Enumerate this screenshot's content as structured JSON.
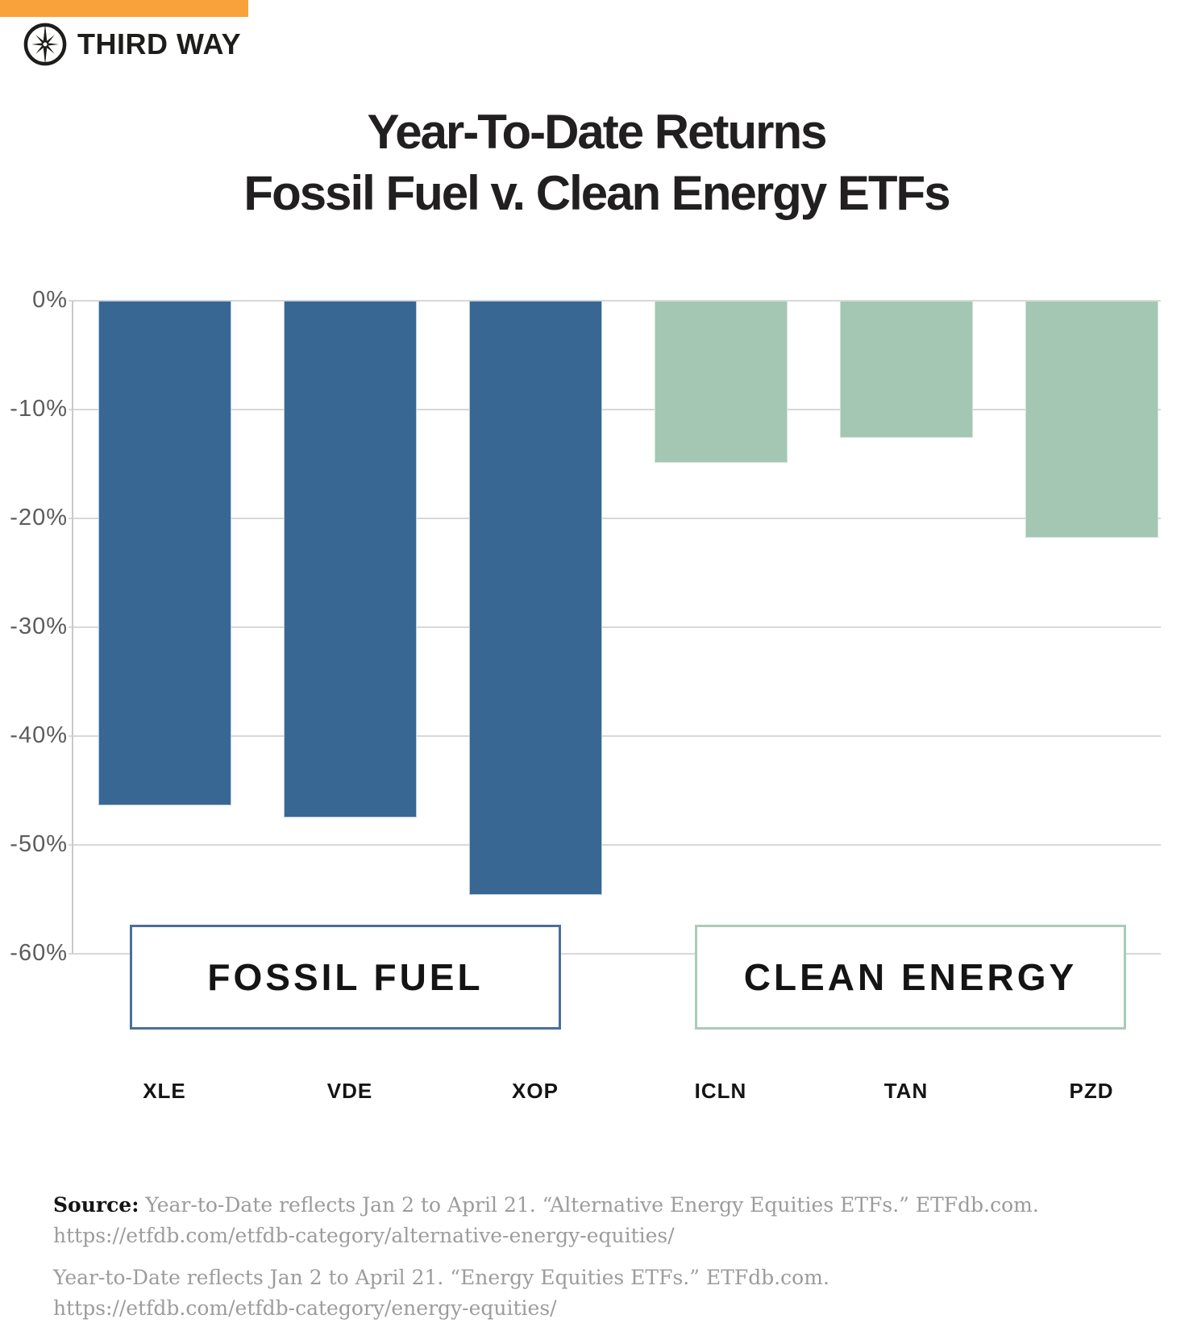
{
  "brand": {
    "logo_text": "THIRD WAY",
    "logo_icon": "compass-star-icon",
    "accent_color": "#F9A13A"
  },
  "title": {
    "line1": "Year-To-Date Returns",
    "line2": "Fossil Fuel v. Clean Energy ETFs"
  },
  "chart_data": {
    "type": "bar",
    "title": "Year-To-Date Returns Fossil Fuel v. Clean Energy ETFs",
    "categories": [
      "XLE",
      "VDE",
      "XOP",
      "ICLN",
      "TAN",
      "PZD"
    ],
    "values": [
      -46.4,
      -47.5,
      -54.6,
      -14.9,
      -12.6,
      -21.8
    ],
    "unit": "%",
    "bar_colors": [
      "#396793",
      "#396793",
      "#396793",
      "#A3C7B2",
      "#A3C7B2",
      "#A3C7B2"
    ],
    "ylim": [
      -60,
      0
    ],
    "ytick_values": [
      0,
      -10,
      -20,
      -30,
      -40,
      -50,
      -60
    ],
    "ytick_labels": [
      "0%",
      "-10%",
      "-20%",
      "-30%",
      "-40%",
      "-50%",
      "-60%"
    ],
    "grid": true,
    "legend_position": "inside-bottom",
    "series_groups": [
      {
        "label": "FOSSIL FUEL",
        "tickers": [
          "XLE",
          "VDE",
          "XOP"
        ],
        "bar_color": "#396793",
        "box_border_color": "#4A6E9E"
      },
      {
        "label": "CLEAN ENERGY",
        "tickers": [
          "ICLN",
          "TAN",
          "PZD"
        ],
        "bar_color": "#A3C7B2",
        "box_border_color": "#AACBB8"
      }
    ]
  },
  "source": {
    "label": "Source:",
    "note1": "Year-to-Date reflects Jan 2 to April 21. “Alternative Energy Equities ETFs.” ETFdb.com.",
    "note1_url": "https://etfdb.com/etfdb-category/alternative-energy-equities/",
    "note2": "Year-to-Date reflects Jan 2 to April 21. “Energy Equities ETFs.” ETFdb.com.",
    "note2_url": "https://etfdb.com/etfdb-category/energy-equities/"
  }
}
